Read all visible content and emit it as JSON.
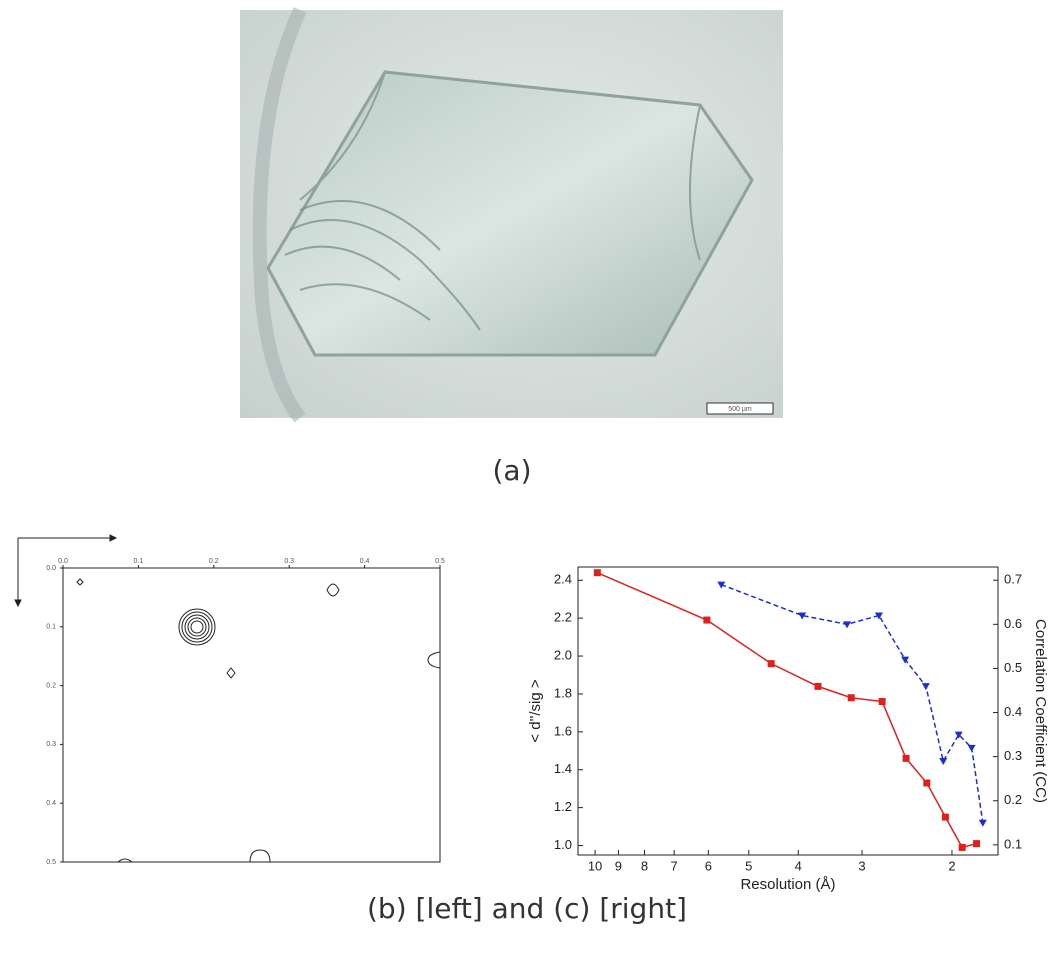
{
  "photo": {
    "scale_bar": "500 µm"
  },
  "captions": [
    "(a)",
    "(b) [left] and (c) [right]"
  ],
  "chart_data": [
    {
      "type": "contour",
      "xlim": [
        0,
        0.5
      ],
      "ylim": [
        0,
        0.5
      ],
      "xticks": [
        {
          "value": 0,
          "label": "0.0"
        },
        0.1,
        0.2,
        0.3,
        0.4,
        0.5
      ],
      "yticks": [
        {
          "value": 0,
          "label": "0.0"
        },
        0.1,
        0.2,
        0.3,
        0.4,
        0.5
      ]
    },
    {
      "type": "line",
      "xlabel": "Resolution (Å)",
      "ylabel": "< d''/sig >",
      "y2label": "Correlation Coefficient (CC)",
      "xscale": "log",
      "xlim": [
        10.8,
        1.625
      ],
      "xticks": [
        10,
        9,
        8,
        7,
        6,
        5,
        4,
        3,
        2
      ],
      "ylim": [
        0.95,
        2.47
      ],
      "yticks": [
        {
          "value": 1,
          "label": "1.0"
        },
        1.2,
        1.4,
        1.6,
        1.8,
        {
          "value": 2,
          "label": "2.0"
        },
        2.2,
        2.4
      ],
      "y2lim": [
        0.077,
        0.73
      ],
      "y2ticks": [
        0.1,
        0.2,
        0.3,
        0.4,
        0.5,
        0.6,
        0.7
      ],
      "series": [
        {
          "color": "#e0201c",
          "marker": "square",
          "dashed": false,
          "x": [
            9.9,
            6.04,
            4.52,
            3.66,
            3.15,
            2.74,
            2.46,
            2.24,
            2.06,
            1.91,
            1.79
          ],
          "values": [
            2.44,
            2.19,
            1.96,
            1.84,
            1.78,
            1.76,
            1.46,
            1.33,
            1.15,
            0.99,
            1.01
          ]
        },
        {
          "color": "#1f2fc8",
          "marker": "triangle-down",
          "dashed": true,
          "axis": "y2",
          "x": [
            5.66,
            3.93,
            3.21,
            2.78,
            2.47,
            2.25,
            2.08,
            1.94,
            1.83,
            1.74
          ],
          "values": [
            0.69,
            0.62,
            0.6,
            0.62,
            0.52,
            0.46,
            0.29,
            0.35,
            0.32,
            0.15
          ]
        }
      ]
    }
  ]
}
